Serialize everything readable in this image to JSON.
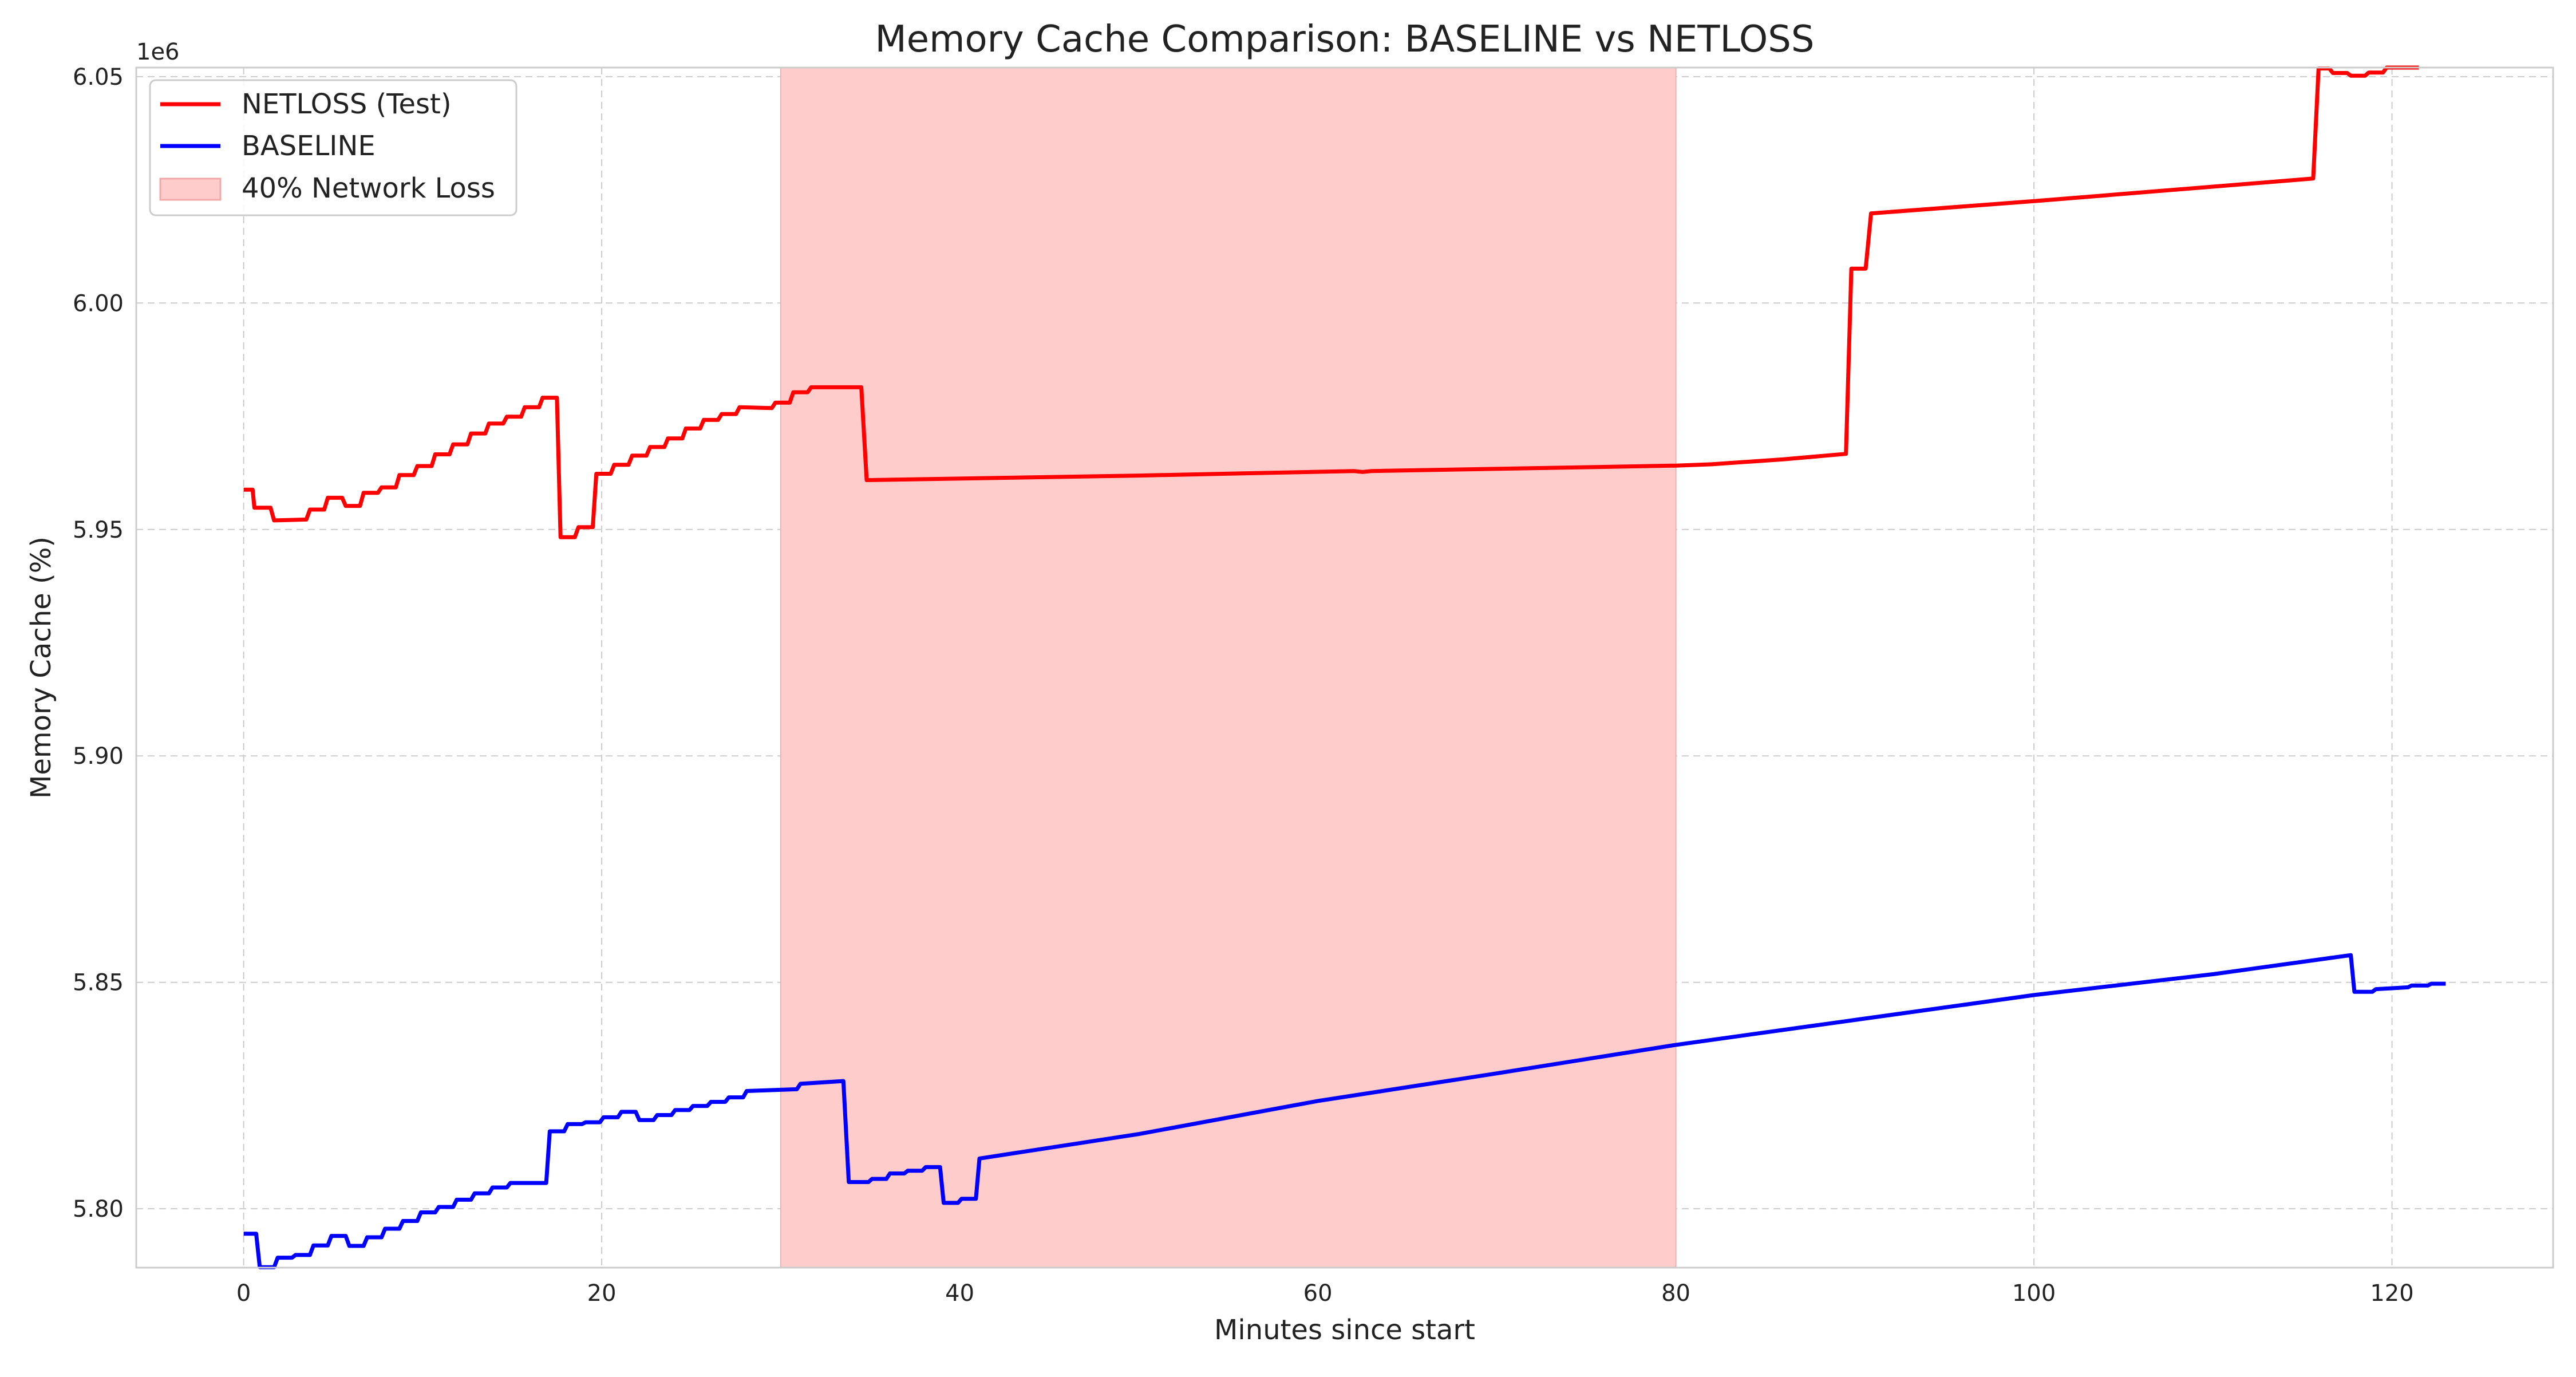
{
  "chart_data": {
    "type": "line",
    "title": "Memory Cache Comparison: BASELINE vs NETLOSS",
    "xlabel": "Minutes since start",
    "ylabel": "Memory Cache (%)",
    "y_offset_label": "1e6",
    "xlim": [
      -6,
      129
    ],
    "ylim": [
      5787000,
      6052000
    ],
    "x_ticks": [
      0,
      20,
      40,
      60,
      80,
      100,
      120
    ],
    "x_tick_labels": [
      "0",
      "20",
      "40",
      "60",
      "80",
      "100",
      "120"
    ],
    "y_ticks": [
      5800000,
      5850000,
      5900000,
      5950000,
      6000000,
      6050000
    ],
    "y_tick_labels": [
      "5.80",
      "5.85",
      "5.90",
      "5.95",
      "6.00",
      "6.05"
    ],
    "grid": true,
    "legend_position": "top-left",
    "shaded_region": {
      "label": "40% Network Loss",
      "x_start": 30,
      "x_end": 80,
      "color": "#ffcccc"
    },
    "series": [
      {
        "name": "NETLOSS (Test)",
        "color": "#ff0000",
        "points": [
          [
            0,
            5958800
          ],
          [
            0.5,
            5958800
          ],
          [
            0.6,
            5954800
          ],
          [
            1.5,
            5954800
          ],
          [
            1.7,
            5952000
          ],
          [
            3.5,
            5952200
          ],
          [
            3.7,
            5954400
          ],
          [
            4.5,
            5954400
          ],
          [
            4.7,
            5957000
          ],
          [
            5.5,
            5957000
          ],
          [
            5.7,
            5955200
          ],
          [
            6.5,
            5955200
          ],
          [
            6.7,
            5958100
          ],
          [
            7.5,
            5958100
          ],
          [
            7.7,
            5959300
          ],
          [
            8.5,
            5959300
          ],
          [
            8.7,
            5962000
          ],
          [
            9.5,
            5962000
          ],
          [
            9.7,
            5964000
          ],
          [
            10.5,
            5964000
          ],
          [
            10.7,
            5966600
          ],
          [
            11.5,
            5966600
          ],
          [
            11.7,
            5968800
          ],
          [
            12.5,
            5968800
          ],
          [
            12.7,
            5971200
          ],
          [
            13.5,
            5971200
          ],
          [
            13.7,
            5973400
          ],
          [
            14.5,
            5973400
          ],
          [
            14.7,
            5974900
          ],
          [
            15.5,
            5974900
          ],
          [
            15.7,
            5977000
          ],
          [
            16.5,
            5977000
          ],
          [
            16.7,
            5979100
          ],
          [
            17.5,
            5979100
          ],
          [
            17.7,
            5948300
          ],
          [
            18.5,
            5948300
          ],
          [
            18.7,
            5950500
          ],
          [
            19.5,
            5950500
          ],
          [
            19.7,
            5962300
          ],
          [
            20.5,
            5962300
          ],
          [
            20.7,
            5964300
          ],
          [
            21.5,
            5964300
          ],
          [
            21.7,
            5966300
          ],
          [
            22.5,
            5966300
          ],
          [
            22.7,
            5968200
          ],
          [
            23.5,
            5968200
          ],
          [
            23.7,
            5970100
          ],
          [
            24.5,
            5970100
          ],
          [
            24.7,
            5972300
          ],
          [
            25.5,
            5972300
          ],
          [
            25.7,
            5974200
          ],
          [
            26.5,
            5974200
          ],
          [
            26.7,
            5975500
          ],
          [
            27.5,
            5975500
          ],
          [
            27.7,
            5977000
          ],
          [
            29.5,
            5976800
          ],
          [
            29.7,
            5978000
          ],
          [
            30.5,
            5978000
          ],
          [
            30.7,
            5980300
          ],
          [
            31.5,
            5980300
          ],
          [
            31.7,
            5981400
          ],
          [
            34.5,
            5981400
          ],
          [
            34.8,
            5960900
          ],
          [
            50,
            5961900
          ],
          [
            62,
            5962900
          ],
          [
            62.5,
            5962700
          ],
          [
            63,
            5962900
          ],
          [
            80,
            5964100
          ],
          [
            82,
            5964400
          ],
          [
            86,
            5965500
          ],
          [
            89.5,
            5966700
          ],
          [
            89.8,
            6007600
          ],
          [
            90.6,
            6007600
          ],
          [
            90.9,
            6019800
          ],
          [
            100,
            6022500
          ],
          [
            115.6,
            6027500
          ],
          [
            115.9,
            6051800
          ],
          [
            116.5,
            6051800
          ],
          [
            116.7,
            6050800
          ],
          [
            117.5,
            6050800
          ],
          [
            117.7,
            6050200
          ],
          [
            118.5,
            6050200
          ],
          [
            118.7,
            6050900
          ],
          [
            119.5,
            6050900
          ],
          [
            119.7,
            6052000
          ],
          [
            121.5,
            6052000
          ]
        ]
      },
      {
        "name": "BASELINE",
        "color": "#0000ff",
        "points": [
          [
            0,
            5794500
          ],
          [
            0.7,
            5794500
          ],
          [
            0.9,
            5787100
          ],
          [
            1.7,
            5787100
          ],
          [
            1.9,
            5789200
          ],
          [
            2.7,
            5789200
          ],
          [
            2.9,
            5789800
          ],
          [
            3.7,
            5789800
          ],
          [
            3.9,
            5791900
          ],
          [
            4.7,
            5791900
          ],
          [
            4.9,
            5794000
          ],
          [
            5.7,
            5794000
          ],
          [
            5.9,
            5791800
          ],
          [
            6.7,
            5791800
          ],
          [
            6.9,
            5793700
          ],
          [
            7.7,
            5793700
          ],
          [
            7.9,
            5795600
          ],
          [
            8.7,
            5795600
          ],
          [
            8.9,
            5797300
          ],
          [
            9.7,
            5797300
          ],
          [
            9.9,
            5799200
          ],
          [
            10.7,
            5799200
          ],
          [
            10.9,
            5800400
          ],
          [
            11.7,
            5800400
          ],
          [
            11.9,
            5802000
          ],
          [
            12.7,
            5802000
          ],
          [
            12.9,
            5803400
          ],
          [
            13.7,
            5803400
          ],
          [
            13.9,
            5804700
          ],
          [
            14.7,
            5804700
          ],
          [
            14.9,
            5805700
          ],
          [
            16.9,
            5805700
          ],
          [
            17.1,
            5817100
          ],
          [
            17.9,
            5817100
          ],
          [
            18.1,
            5818700
          ],
          [
            18.9,
            5818700
          ],
          [
            19.1,
            5819100
          ],
          [
            19.9,
            5819100
          ],
          [
            20.1,
            5820200
          ],
          [
            20.9,
            5820200
          ],
          [
            21.1,
            5821400
          ],
          [
            21.9,
            5821400
          ],
          [
            22.1,
            5819600
          ],
          [
            22.9,
            5819600
          ],
          [
            23.1,
            5820700
          ],
          [
            23.9,
            5820700
          ],
          [
            24.1,
            5821800
          ],
          [
            24.9,
            5821800
          ],
          [
            25.1,
            5822700
          ],
          [
            25.9,
            5822700
          ],
          [
            26.1,
            5823600
          ],
          [
            26.9,
            5823600
          ],
          [
            27.1,
            5824600
          ],
          [
            27.9,
            5824600
          ],
          [
            28.1,
            5826000
          ],
          [
            30.9,
            5826400
          ],
          [
            31.1,
            5827600
          ],
          [
            33.5,
            5828200
          ],
          [
            33.8,
            5805900
          ],
          [
            34.9,
            5805900
          ],
          [
            35.1,
            5806600
          ],
          [
            35.9,
            5806600
          ],
          [
            36.1,
            5807800
          ],
          [
            36.9,
            5807800
          ],
          [
            37.1,
            5808400
          ],
          [
            37.9,
            5808400
          ],
          [
            38.1,
            5809200
          ],
          [
            38.9,
            5809200
          ],
          [
            39.1,
            5801300
          ],
          [
            39.9,
            5801300
          ],
          [
            40.1,
            5802200
          ],
          [
            40.9,
            5802200
          ],
          [
            41.1,
            5811100
          ],
          [
            50,
            5816500
          ],
          [
            60,
            5823800
          ],
          [
            70,
            5829900
          ],
          [
            80,
            5836200
          ],
          [
            90,
            5841700
          ],
          [
            100,
            5847200
          ],
          [
            110,
            5851800
          ],
          [
            117.7,
            5856000
          ],
          [
            117.9,
            5847900
          ],
          [
            118.9,
            5847900
          ],
          [
            119.1,
            5848500
          ],
          [
            120.9,
            5848900
          ],
          [
            121.1,
            5849300
          ],
          [
            122,
            5849300
          ],
          [
            122.2,
            5849700
          ],
          [
            123,
            5849700
          ]
        ]
      }
    ]
  }
}
